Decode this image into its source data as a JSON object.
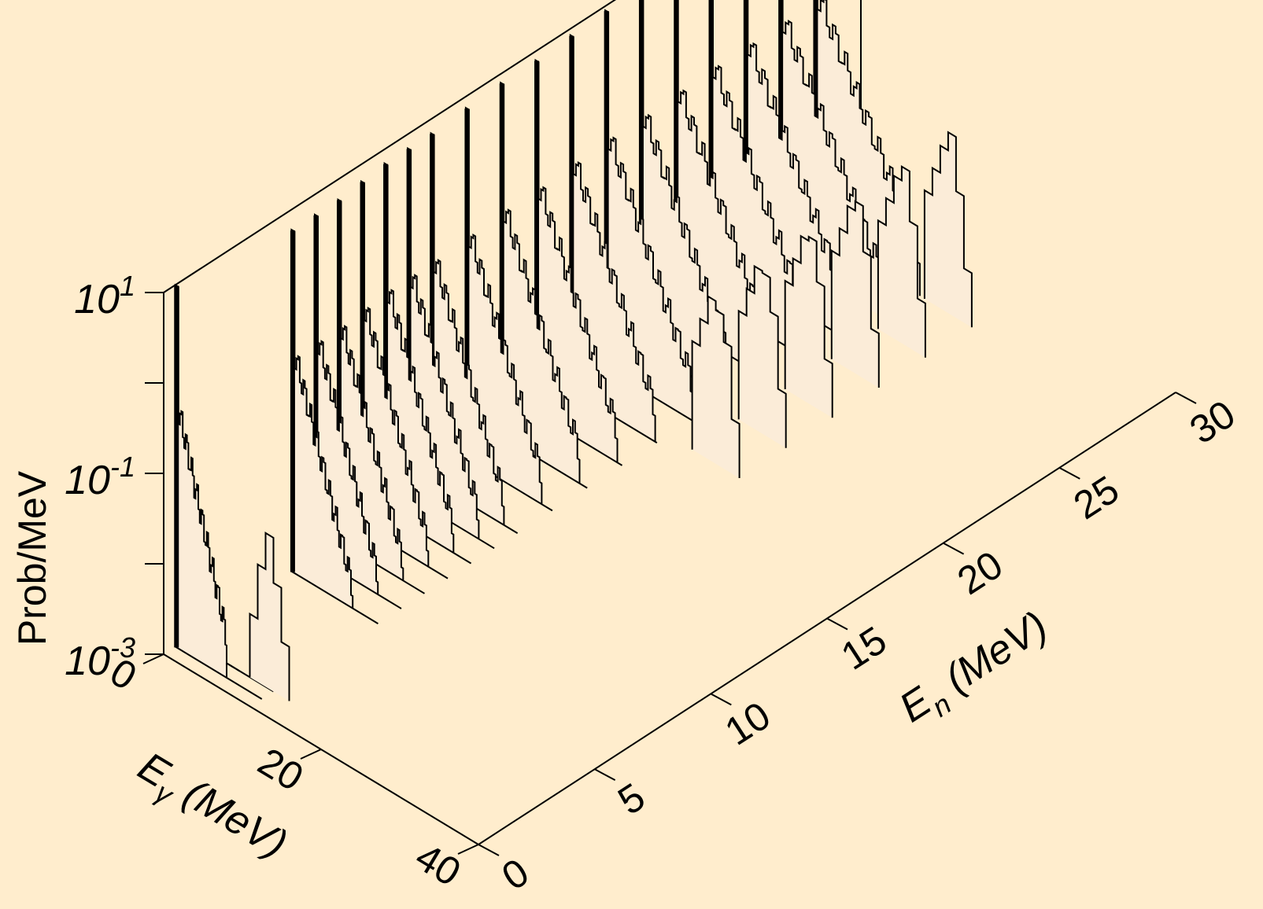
{
  "chart_data": {
    "type": "3d-histogram-waterfall",
    "axes": {
      "y": {
        "label": "Prob/MeV",
        "scale": "log",
        "ticks": [
          {
            "exp": "-3",
            "value": 0.001
          },
          {
            "exp": "-1",
            "value": 0.1
          },
          {
            "exp": "1",
            "value": 10
          }
        ],
        "tick_base": "10",
        "range": [
          0.001,
          10
        ]
      },
      "x": {
        "label_main": "E",
        "label_sub": "γ",
        "label_unit": " (MeV)",
        "range": [
          0,
          40
        ],
        "ticks": [
          "0",
          "20",
          "40"
        ]
      },
      "z": {
        "label_main": "E",
        "label_sub": "n",
        "label_unit": " (MeV)",
        "range": [
          0,
          30
        ],
        "ticks": [
          "0",
          "5",
          "10",
          "15",
          "20",
          "25",
          "30"
        ]
      }
    },
    "series": [
      {
        "En": 0.5,
        "peak_Egamma": 0.3,
        "peak_value": 10
      },
      {
        "En": 1.0,
        "peak_Egamma": 11,
        "peak_value": 0.05
      },
      {
        "En": 5.5,
        "peak_Egamma": 0.5,
        "peak_value": 6
      },
      {
        "En": 6.5,
        "peak_Egamma": 0.5,
        "peak_value": 6
      },
      {
        "En": 7.5,
        "peak_Egamma": 0.5,
        "peak_value": 6
      },
      {
        "En": 8.5,
        "peak_Egamma": 0.5,
        "peak_value": 6.5
      },
      {
        "En": 9.5,
        "peak_Egamma": 0.5,
        "peak_value": 7
      },
      {
        "En": 10.5,
        "peak_Egamma": 0.5,
        "peak_value": 7
      },
      {
        "En": 11.5,
        "peak_Egamma": 0.5,
        "peak_value": 7
      },
      {
        "En": 13.0,
        "peak_Egamma": 0.5,
        "peak_value": 7.5
      },
      {
        "En": 14.5,
        "peak_Egamma": 0.5,
        "peak_value": 8
      },
      {
        "En": 16.0,
        "peak_Egamma": 0.5,
        "peak_value": 8
      },
      {
        "En": 17.5,
        "peak_Egamma": 0.5,
        "peak_value": 8.5
      },
      {
        "En": 19.0,
        "peak_Egamma": 0.5,
        "peak_value": 9
      },
      {
        "En": 20.5,
        "peak_Egamma": 0.5,
        "peak_value": 9
      },
      {
        "En": 22.0,
        "peak_Egamma": 0.5,
        "peak_value": 9.5
      },
      {
        "En": 23.5,
        "peak_Egamma": 0.5,
        "peak_value": 10
      },
      {
        "En": 25.0,
        "peak_Egamma": 0.5,
        "peak_value": 10
      },
      {
        "En": 26.5,
        "peak_Egamma": 0.5,
        "peak_value": 10
      },
      {
        "En": 28.0,
        "peak_Egamma": 0.5,
        "peak_value": 10
      }
    ],
    "secondary_bumps": [
      {
        "En": 18.0,
        "Egamma": 18,
        "value": 0.05
      },
      {
        "En": 20.0,
        "Egamma": 18,
        "value": 0.06
      },
      {
        "En": 22.0,
        "Egamma": 18,
        "value": 0.07
      },
      {
        "En": 24.0,
        "Egamma": 18,
        "value": 0.08
      },
      {
        "En": 26.0,
        "Egamma": 18,
        "value": 0.09
      },
      {
        "En": 28.0,
        "Egamma": 18,
        "value": 0.1
      }
    ]
  }
}
